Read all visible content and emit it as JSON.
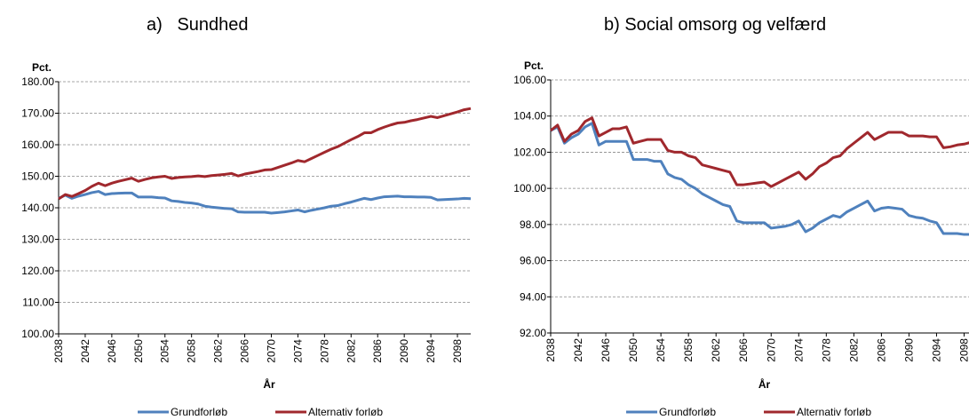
{
  "chart_data": [
    {
      "type": "line",
      "title": "a)   Sundhed",
      "ylabel": "Pct.",
      "xlabel": "År",
      "grid": true,
      "legend": "bottom",
      "x": [
        2038,
        2039,
        2040,
        2041,
        2042,
        2043,
        2044,
        2045,
        2046,
        2047,
        2048,
        2049,
        2050,
        2051,
        2052,
        2053,
        2054,
        2055,
        2056,
        2057,
        2058,
        2059,
        2060,
        2061,
        2062,
        2063,
        2064,
        2065,
        2066,
        2067,
        2068,
        2069,
        2070,
        2071,
        2072,
        2073,
        2074,
        2075,
        2076,
        2077,
        2078,
        2079,
        2080,
        2081,
        2082,
        2083,
        2084,
        2085,
        2086,
        2087,
        2088,
        2089,
        2090,
        2091,
        2092,
        2093,
        2094,
        2095,
        2096,
        2097,
        2098,
        2099,
        2100
      ],
      "xlim": [
        2038,
        2100
      ],
      "xticks": [
        2038,
        2042,
        2046,
        2050,
        2054,
        2058,
        2062,
        2066,
        2070,
        2074,
        2078,
        2082,
        2086,
        2090,
        2094,
        2098
      ],
      "ylim": [
        100,
        180
      ],
      "yticks": [
        {
          "value": 100,
          "label": "100.00"
        },
        {
          "value": 110,
          "label": "110.00"
        },
        {
          "value": 120,
          "label": "120.00"
        },
        {
          "value": 130,
          "label": "130.00"
        },
        {
          "value": 140,
          "label": "140.00"
        },
        {
          "value": 150,
          "label": "150.00"
        },
        {
          "value": 160,
          "label": "160.00"
        },
        {
          "value": 170,
          "label": "170.00"
        },
        {
          "value": 180,
          "label": "180.00"
        }
      ],
      "series": [
        {
          "name": "Grundforløb",
          "color": "#4f81bd",
          "values": [
            143,
            144,
            143,
            143.7,
            144.2,
            144.8,
            145.2,
            144.2,
            144.5,
            144.6,
            144.7,
            144.7,
            143.4,
            143.4,
            143.4,
            143.2,
            143.1,
            142.2,
            142,
            141.7,
            141.5,
            141.2,
            140.5,
            140.2,
            140,
            139.8,
            139.7,
            138.7,
            138.6,
            138.6,
            138.6,
            138.6,
            138.3,
            138.5,
            138.7,
            139,
            139.3,
            138.7,
            139.2,
            139.6,
            140,
            140.5,
            140.7,
            141.3,
            141.8,
            142.4,
            143,
            142.6,
            143.1,
            143.5,
            143.6,
            143.7,
            143.5,
            143.5,
            143.4,
            143.4,
            143.3,
            142.5,
            142.6,
            142.7,
            142.8,
            143,
            142.9
          ]
        },
        {
          "name": "Alternativ forløb",
          "color": "#a0282d",
          "values": [
            142.8,
            144.2,
            143.6,
            144.5,
            145.5,
            146.8,
            147.8,
            147,
            147.8,
            148.4,
            148.9,
            149.4,
            148.4,
            149,
            149.5,
            149.8,
            150,
            149.3,
            149.6,
            149.8,
            149.9,
            150.1,
            149.9,
            150.2,
            150.4,
            150.6,
            150.9,
            150.1,
            150.7,
            151.1,
            151.5,
            152,
            152.1,
            152.8,
            153.5,
            154.2,
            155,
            154.6,
            155.6,
            156.6,
            157.6,
            158.6,
            159.4,
            160.5,
            161.6,
            162.6,
            163.8,
            163.8,
            164.8,
            165.6,
            166.3,
            166.9,
            167.1,
            167.6,
            168,
            168.5,
            169,
            168.6,
            169.2,
            169.8,
            170.4,
            171.1,
            171.5
          ]
        }
      ]
    },
    {
      "type": "line",
      "title": "b) Social omsorg og velfærd",
      "ylabel": "Pct.",
      "xlabel": "År",
      "grid": true,
      "legend": "bottom",
      "x": [
        2038,
        2039,
        2040,
        2041,
        2042,
        2043,
        2044,
        2045,
        2046,
        2047,
        2048,
        2049,
        2050,
        2051,
        2052,
        2053,
        2054,
        2055,
        2056,
        2057,
        2058,
        2059,
        2060,
        2061,
        2062,
        2063,
        2064,
        2065,
        2066,
        2067,
        2068,
        2069,
        2070,
        2071,
        2072,
        2073,
        2074,
        2075,
        2076,
        2077,
        2078,
        2079,
        2080,
        2081,
        2082,
        2083,
        2084,
        2085,
        2086,
        2087,
        2088,
        2089,
        2090,
        2091,
        2092,
        2093,
        2094,
        2095,
        2096,
        2097,
        2098,
        2099,
        2100
      ],
      "xlim": [
        2038,
        2100
      ],
      "xticks": [
        2038,
        2042,
        2046,
        2050,
        2054,
        2058,
        2062,
        2066,
        2070,
        2074,
        2078,
        2082,
        2086,
        2090,
        2094,
        2098
      ],
      "ylim": [
        92,
        106
      ],
      "yticks": [
        {
          "value": 92,
          "label": "92.00"
        },
        {
          "value": 94,
          "label": "94.00"
        },
        {
          "value": 96,
          "label": "96.00"
        },
        {
          "value": 98,
          "label": "98.00"
        },
        {
          "value": 100,
          "label": "100.00"
        },
        {
          "value": 102,
          "label": "102.00"
        },
        {
          "value": 104,
          "label": "104.00"
        },
        {
          "value": 106,
          "label": "106.00"
        }
      ],
      "series": [
        {
          "name": "Grundforløb",
          "color": "#4f81bd",
          "values": [
            103.2,
            103.4,
            102.5,
            102.8,
            103,
            103.4,
            103.6,
            102.4,
            102.6,
            102.6,
            102.6,
            102.6,
            101.6,
            101.6,
            101.6,
            101.5,
            101.5,
            100.8,
            100.6,
            100.5,
            100.2,
            100,
            99.7,
            99.5,
            99.3,
            99.1,
            99,
            98.2,
            98.1,
            98.1,
            98.1,
            98.1,
            97.8,
            97.85,
            97.9,
            98,
            98.2,
            97.6,
            97.8,
            98.1,
            98.3,
            98.5,
            98.4,
            98.7,
            98.9,
            99.1,
            99.3,
            98.75,
            98.9,
            98.95,
            98.9,
            98.85,
            98.5,
            98.4,
            98.35,
            98.2,
            98.1,
            97.5,
            97.5,
            97.5,
            97.45,
            97.45,
            97.4
          ]
        },
        {
          "name": "Alternativ forløb",
          "color": "#a0282d",
          "values": [
            103.2,
            103.5,
            102.6,
            103,
            103.2,
            103.7,
            103.9,
            102.9,
            103.1,
            103.3,
            103.3,
            103.4,
            102.5,
            102.6,
            102.7,
            102.7,
            102.7,
            102.1,
            102,
            102,
            101.8,
            101.7,
            101.3,
            101.2,
            101.1,
            101,
            100.9,
            100.2,
            100.2,
            100.25,
            100.3,
            100.35,
            100.1,
            100.3,
            100.5,
            100.7,
            100.9,
            100.5,
            100.8,
            101.2,
            101.4,
            101.7,
            101.8,
            102.2,
            102.5,
            102.8,
            103.1,
            102.7,
            102.9,
            103.1,
            103.1,
            103.1,
            102.9,
            102.9,
            102.9,
            102.85,
            102.85,
            102.25,
            102.3,
            102.4,
            102.45,
            102.55,
            102.6
          ]
        }
      ]
    }
  ]
}
